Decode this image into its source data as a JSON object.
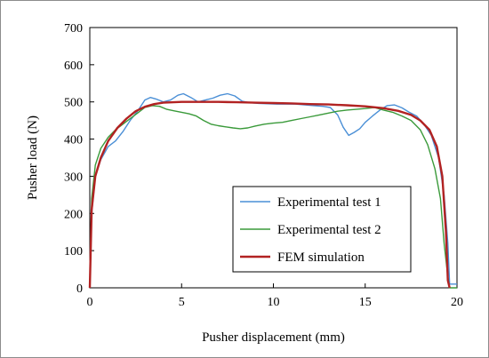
{
  "chart_data": {
    "type": "line",
    "title": "",
    "xlabel": "Pusher displacement (mm)",
    "ylabel": "Pusher load (N)",
    "xlim": [
      0,
      20
    ],
    "ylim": [
      0,
      700
    ],
    "xticks": [
      0,
      5,
      10,
      15,
      20
    ],
    "yticks": [
      0,
      100,
      200,
      300,
      400,
      500,
      600,
      700
    ],
    "grid": false,
    "legend_position": "lower-center",
    "series": [
      {
        "name": "Experimental test 1",
        "color": "#4a8fd6",
        "x": [
          0,
          0.1,
          0.3,
          0.6,
          1.0,
          1.4,
          1.8,
          2.2,
          2.6,
          3.0,
          3.3,
          3.6,
          4.0,
          4.4,
          4.8,
          5.1,
          5.5,
          5.9,
          6.3,
          6.7,
          7.1,
          7.5,
          7.9,
          8.3,
          8.7,
          9.2,
          9.7,
          10.2,
          10.7,
          11.2,
          11.7,
          12.2,
          12.7,
          13.1,
          13.5,
          13.8,
          14.1,
          14.4,
          14.7,
          15.0,
          15.4,
          15.8,
          16.2,
          16.6,
          17.0,
          17.4,
          17.8,
          18.2,
          18.6,
          19.0,
          19.3,
          19.5,
          19.6,
          19.7,
          20.0
        ],
        "y": [
          0,
          200,
          300,
          345,
          380,
          395,
          420,
          450,
          475,
          505,
          512,
          508,
          500,
          505,
          518,
          522,
          512,
          500,
          505,
          510,
          518,
          522,
          516,
          502,
          498,
          496,
          495,
          494,
          494,
          494,
          492,
          490,
          488,
          485,
          465,
          432,
          410,
          418,
          428,
          445,
          462,
          478,
          490,
          492,
          484,
          472,
          462,
          440,
          410,
          350,
          250,
          120,
          10,
          10,
          10
        ]
      },
      {
        "name": "Experimental test 2",
        "color": "#3a9a3a",
        "x": [
          0,
          0.1,
          0.3,
          0.6,
          1.0,
          1.4,
          1.8,
          2.2,
          2.6,
          3.0,
          3.4,
          3.8,
          4.2,
          4.6,
          5.0,
          5.4,
          5.8,
          6.2,
          6.6,
          7.0,
          7.4,
          7.8,
          8.2,
          8.6,
          9.0,
          9.5,
          10.0,
          10.5,
          11.0,
          11.5,
          12.0,
          12.5,
          13.0,
          13.5,
          14.0,
          14.5,
          15.0,
          15.5,
          16.0,
          16.5,
          17.0,
          17.5,
          18.0,
          18.4,
          18.8,
          19.1,
          19.3,
          19.5,
          19.6,
          20.0
        ],
        "y": [
          0,
          240,
          330,
          375,
          405,
          425,
          440,
          455,
          470,
          485,
          490,
          488,
          480,
          476,
          472,
          468,
          462,
          450,
          440,
          436,
          433,
          430,
          428,
          430,
          435,
          440,
          443,
          445,
          450,
          455,
          460,
          465,
          470,
          475,
          478,
          480,
          482,
          485,
          478,
          472,
          462,
          450,
          425,
          385,
          320,
          240,
          120,
          30,
          0,
          0
        ]
      },
      {
        "name": "FEM simulation",
        "color": "#b22222",
        "x": [
          0,
          0.1,
          0.3,
          0.6,
          1.0,
          1.5,
          2.0,
          2.5,
          3.0,
          3.5,
          4.0,
          5.0,
          6.0,
          7.0,
          8.0,
          9.0,
          10.0,
          11.0,
          12.0,
          13.0,
          14.0,
          15.0,
          16.0,
          16.8,
          17.5,
          18.0,
          18.5,
          18.9,
          19.2,
          19.4,
          19.5,
          19.6
        ],
        "y": [
          0,
          210,
          300,
          350,
          395,
          430,
          455,
          475,
          487,
          494,
          498,
          500,
          500,
          500,
          499,
          498,
          497,
          496,
          494,
          493,
          491,
          488,
          483,
          476,
          465,
          450,
          425,
          380,
          300,
          150,
          20,
          0
        ]
      }
    ]
  }
}
